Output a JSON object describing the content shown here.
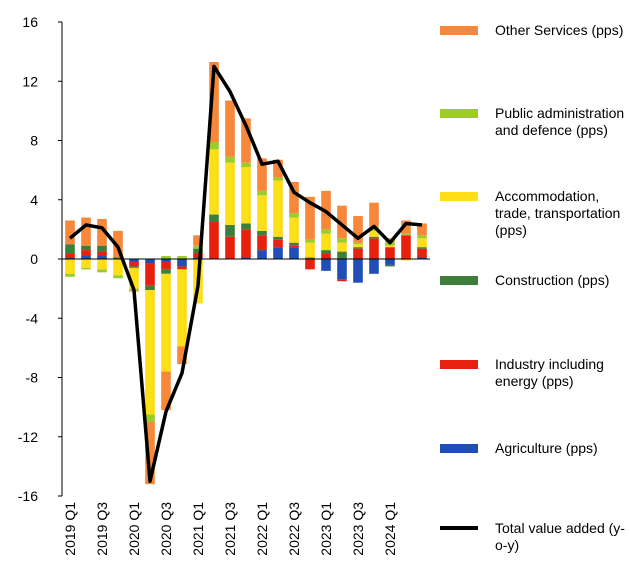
{
  "chart_data": {
    "type": "bar",
    "stacked": true,
    "categories": [
      "2019 Q1",
      null,
      "2019 Q3",
      null,
      "2020 Q1",
      null,
      "2020 Q3",
      null,
      "2021 Q1",
      null,
      "2021 Q3",
      null,
      "2022 Q1",
      null,
      "2022 Q3",
      null,
      "2023 Q1",
      null,
      "2023 Q3",
      null,
      "2024 Q1",
      null,
      null
    ],
    "ylim": [
      -16,
      16
    ],
    "yticks": [
      -16,
      -12,
      -8,
      -4,
      0,
      4,
      8,
      12,
      16
    ],
    "series": [
      {
        "name": "Agriculture (pps)",
        "color": "#1f4fb5",
        "values": [
          0.1,
          0.2,
          0.2,
          0,
          -0.2,
          -0.3,
          -0.2,
          -0.5,
          0.1,
          0,
          0,
          0.1,
          0.6,
          0.8,
          0.8,
          0,
          -0.8,
          -1.4,
          -1.6,
          -1.0,
          -0.4,
          0,
          0.1
        ]
      },
      {
        "name": "Industry including energy (pps)",
        "color": "#e8200f",
        "values": [
          0.3,
          0.4,
          0.3,
          0,
          -0.3,
          -1.5,
          -0.5,
          -0.2,
          0.3,
          2.5,
          1.5,
          1.9,
          1.0,
          0.5,
          0.1,
          -0.7,
          0.4,
          -0.1,
          0.7,
          1.4,
          0.8,
          1.6,
          0.6
        ]
      },
      {
        "name": "Construction (pps)",
        "color": "#3e7d3a",
        "values": [
          0.6,
          0.3,
          0.4,
          0.1,
          -0.1,
          -0.3,
          -0.3,
          0,
          0.3,
          0.5,
          0.8,
          0.4,
          0.3,
          0.2,
          0.2,
          0.1,
          0.2,
          0.5,
          0.1,
          0.1,
          -0.1,
          0,
          0.1
        ]
      },
      {
        "name": "Accommodation, trade, transportation (pps)",
        "color": "#ffde17",
        "values": [
          -1.0,
          -0.6,
          -0.7,
          -1.1,
          -1.4,
          -8.4,
          -6.6,
          -5.2,
          -3.0,
          4.4,
          4.2,
          3.8,
          2.4,
          3.8,
          1.7,
          1.0,
          1.1,
          0.6,
          0.2,
          0.4,
          0.1,
          -0.1,
          0.6
        ]
      },
      {
        "name": "Public administration and defence (pps)",
        "color": "#9ccc2c",
        "values": [
          -0.2,
          -0.1,
          -0.2,
          -0.2,
          -0.1,
          -0.5,
          0.2,
          0.2,
          0.2,
          0.5,
          0.4,
          0.3,
          0.3,
          0.2,
          0.3,
          0.2,
          0.3,
          0.3,
          0.1,
          0.3,
          0.3,
          0.1,
          0.2
        ]
      },
      {
        "name": "Other Services (pps)",
        "color": "#f7883a",
        "values": [
          1.6,
          1.9,
          1.8,
          1.8,
          -0.1,
          -4.2,
          -2.6,
          -1.2,
          0.7,
          5.4,
          3.8,
          3.0,
          2.2,
          1.2,
          2.1,
          2.9,
          2.6,
          2.2,
          1.8,
          1.6,
          0.2,
          0.9,
          0.8
        ]
      },
      {
        "name": "Total value added (y-o-y)",
        "color": "#000000",
        "type": "line",
        "values": [
          1.4,
          2.3,
          2.1,
          0.8,
          -2.1,
          -15.0,
          -10.3,
          -7.7,
          -1.8,
          13.0,
          11.3,
          9.0,
          6.4,
          6.6,
          4.5,
          3.8,
          3.2,
          2.3,
          1.4,
          2.2,
          1.1,
          2.4,
          2.3
        ]
      }
    ]
  }
}
